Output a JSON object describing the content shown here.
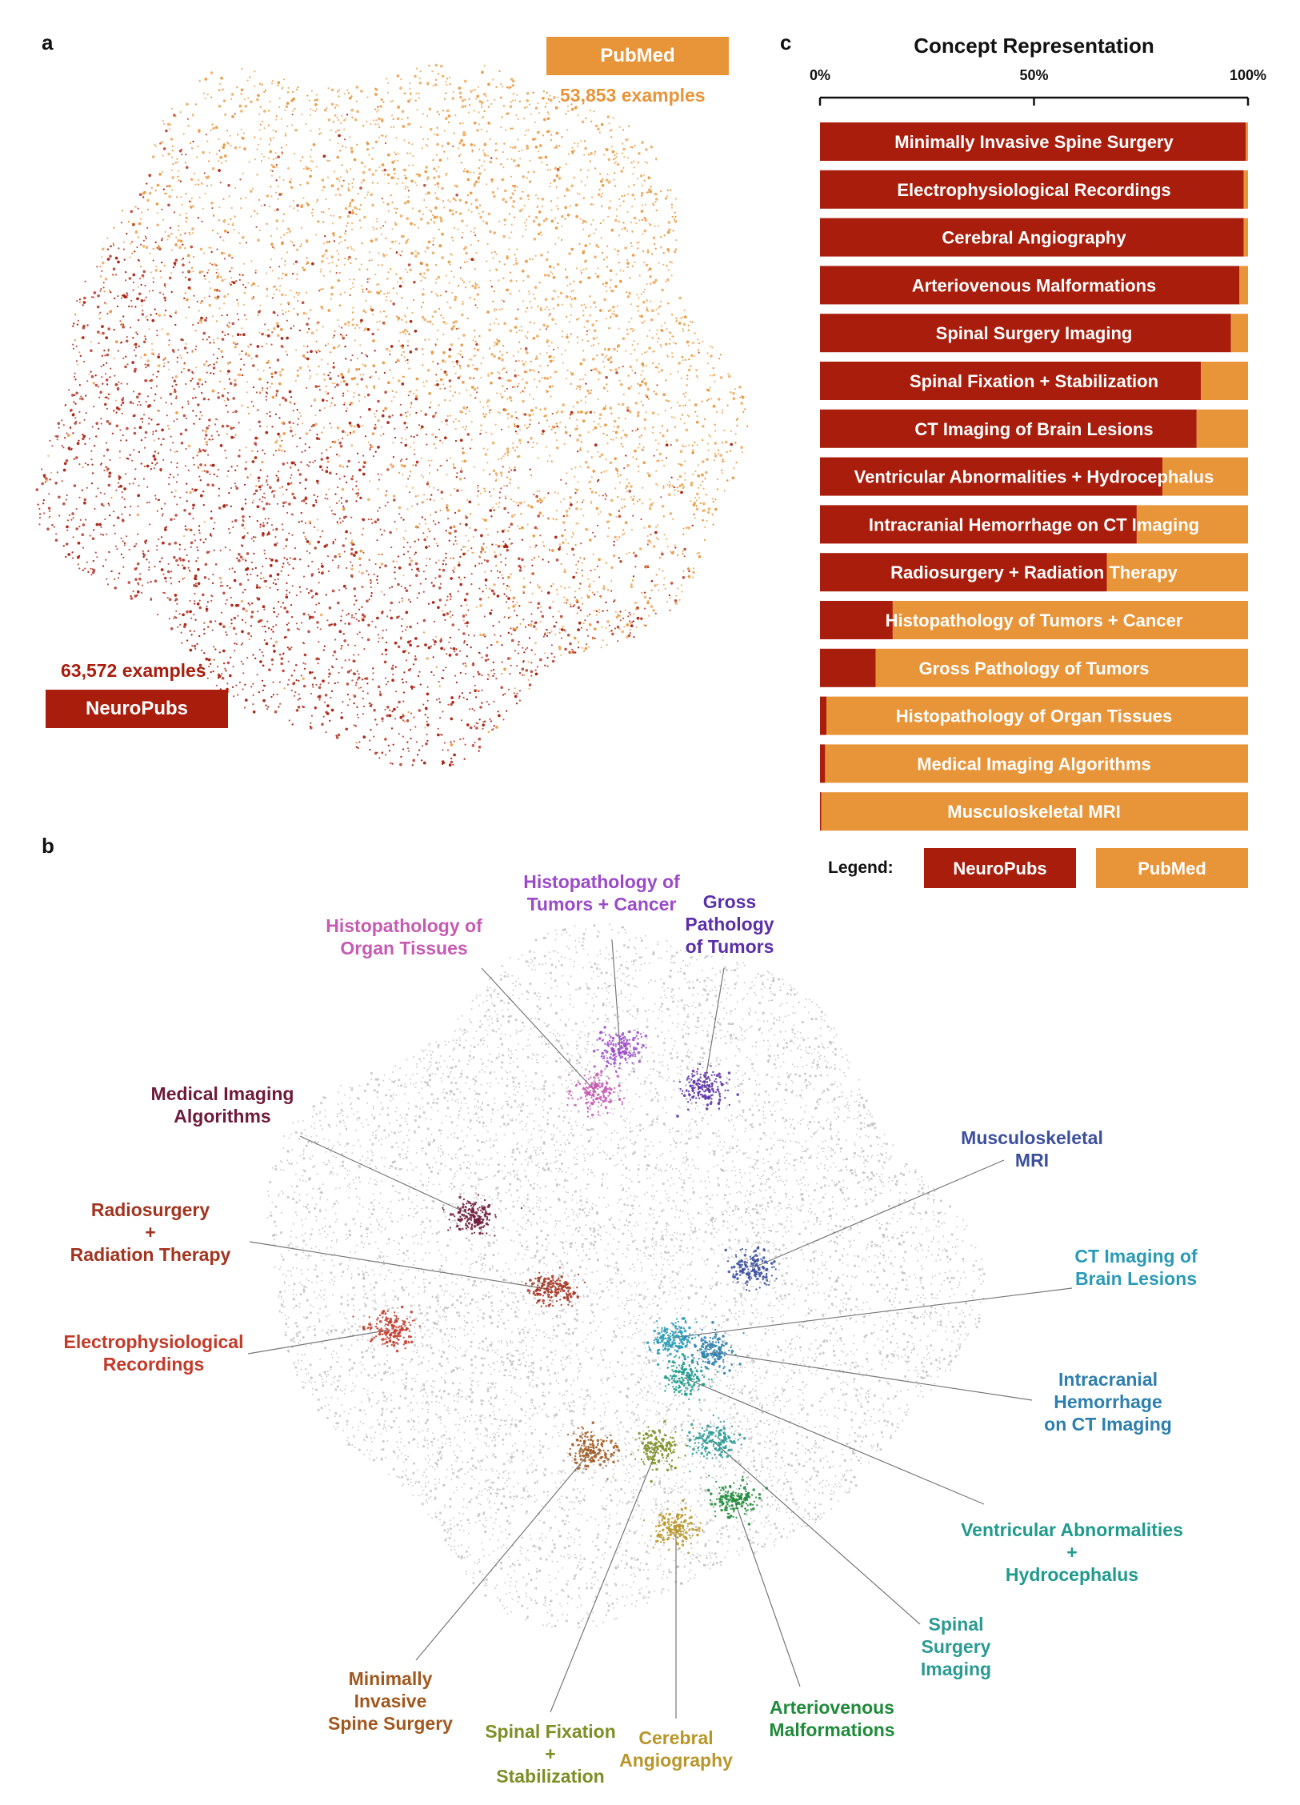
{
  "panels": {
    "a": "a",
    "b": "b",
    "c": "c"
  },
  "colors": {
    "neuropubs": "#a81d0c",
    "pubmed": "#e8953a",
    "background_points": "#b5b5b5"
  },
  "panel_a": {
    "pubmed_label": "PubMed",
    "pubmed_count": "53,853 examples",
    "neuropubs_label": "NeuroPubs",
    "neuropubs_count": "63,572 examples"
  },
  "chart_data": {
    "type": "bar",
    "stacked": true,
    "orientation": "horizontal",
    "title": "Concept Representation",
    "xlim": [
      0,
      100
    ],
    "x_ticks": [
      "0%",
      "50%",
      "100%"
    ],
    "categories": [
      "Minimally Invasive Spine Surgery",
      "Electrophysiological Recordings",
      "Cerebral Angiography",
      "Arteriovenous Malformations",
      "Spinal Surgery Imaging",
      "Spinal Fixation + Stabilization",
      "CT Imaging of Brain Lesions",
      "Ventricular Abnormalities + Hydrocephalus",
      "Intracranial Hemorrhage on CT Imaging",
      "Radiosurgery + Radiation Therapy",
      "Histopathology of Tumors + Cancer",
      "Gross Pathology of Tumors",
      "Histopathology of Organ Tissues",
      "Medical Imaging Algorithms",
      "Musculoskeletal MRI"
    ],
    "series": [
      {
        "name": "NeuroPubs",
        "values": [
          99.5,
          99,
          99,
          98,
          96,
          89,
          88,
          80,
          74,
          67,
          17,
          13,
          1.5,
          1.2,
          0.3
        ]
      },
      {
        "name": "PubMed",
        "values": [
          0.5,
          1,
          1,
          2,
          4,
          11,
          12,
          20,
          26,
          33,
          83,
          87,
          98.5,
          98.8,
          99.7
        ]
      }
    ],
    "legend_title": "Legend:",
    "legend_position": "bottom"
  },
  "panel_b": {
    "clusters": [
      {
        "label_lines": [
          "Histopathology of",
          "Tumors + Cancer"
        ],
        "color": "#9b4ac9"
      },
      {
        "label_lines": [
          "Gross",
          "Pathology",
          "of Tumors"
        ],
        "color": "#5b2fa8"
      },
      {
        "label_lines": [
          "Histopathology of",
          "Organ Tissues"
        ],
        "color": "#c65bb3"
      },
      {
        "label_lines": [
          "Medical Imaging",
          "Algorithms"
        ],
        "color": "#6e1a3b"
      },
      {
        "label_lines": [
          "Musculoskeletal",
          "MRI"
        ],
        "color": "#3c4f9e"
      },
      {
        "label_lines": [
          "Radiosurgery",
          "+",
          "Radiation Therapy"
        ],
        "color": "#a2331f"
      },
      {
        "label_lines": [
          "CT Imaging of",
          "Brain Lesions"
        ],
        "color": "#2a9bb5"
      },
      {
        "label_lines": [
          "Electrophysiological",
          "Recordings"
        ],
        "color": "#c23a2a"
      },
      {
        "label_lines": [
          "Intracranial",
          "Hemorrhage",
          "on CT Imaging"
        ],
        "color": "#2d7fae"
      },
      {
        "label_lines": [
          "Ventricular Abnormalities",
          "+",
          "Hydrocephalus"
        ],
        "color": "#1f9a8c"
      },
      {
        "label_lines": [
          "Spinal",
          "Surgery",
          "Imaging"
        ],
        "color": "#2a9a93"
      },
      {
        "label_lines": [
          "Minimally",
          "Invasive",
          "Spine Surgery"
        ],
        "color": "#a0581f"
      },
      {
        "label_lines": [
          "Spinal Fixation",
          "+",
          "Stabilization"
        ],
        "color": "#7c8f25"
      },
      {
        "label_lines": [
          "Cerebral",
          "Angiography"
        ],
        "color": "#b8962a"
      },
      {
        "label_lines": [
          "Arteriovenous",
          "Malformations"
        ],
        "color": "#1f8a3a"
      }
    ]
  }
}
